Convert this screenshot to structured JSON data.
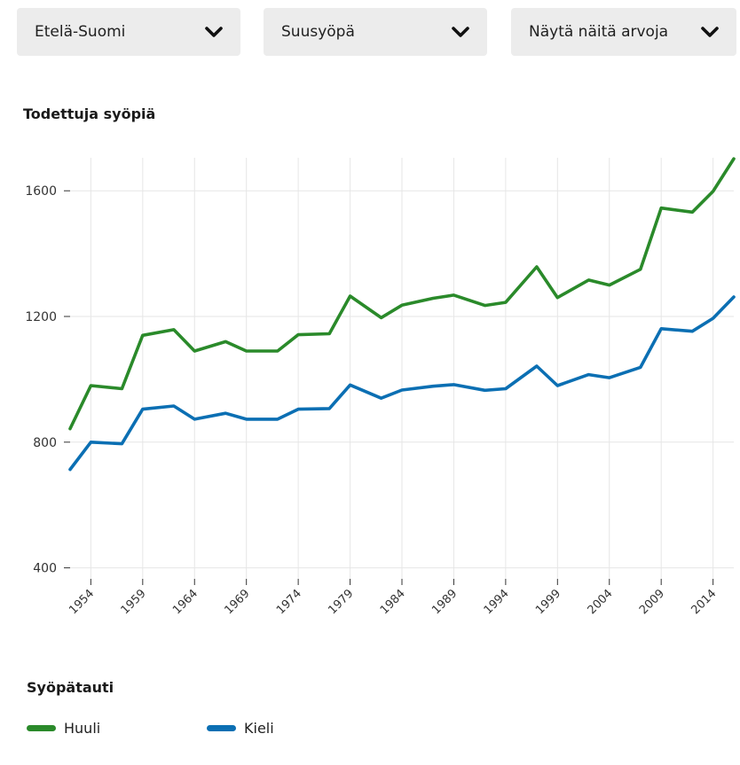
{
  "filters": {
    "region": {
      "value": "Etelä-Suomi"
    },
    "cancer": {
      "value": "Suusyöpä"
    },
    "values": {
      "value": "Näytä näitä arvoja"
    }
  },
  "chart_title": "Todettuja syöpiä",
  "legend": {
    "title": "Syöpätauti"
  },
  "colors": {
    "Huuli": "#2a8a2a",
    "Kieli": "#0b6fb3",
    "grid": "#e6e6e6",
    "axis": "#333333"
  },
  "chart_data": {
    "type": "line",
    "title": "Todettuja syöpiä",
    "x": [
      1952,
      1954,
      1957,
      1959,
      1962,
      1964,
      1967,
      1969,
      1972,
      1974,
      1977,
      1979,
      1982,
      1984,
      1987,
      1989,
      1992,
      1994,
      1997,
      1999,
      2002,
      2004,
      2007,
      2009,
      2012,
      2014,
      2016
    ],
    "xticks": [
      1954,
      1959,
      1964,
      1969,
      1974,
      1979,
      1984,
      1989,
      1994,
      1999,
      2004,
      2009,
      2014
    ],
    "yticks": [
      400,
      800,
      1200,
      1600
    ],
    "xlim": [
      1952,
      2016
    ],
    "ylim": [
      365,
      1705
    ],
    "grid": true,
    "legend_position": "bottom",
    "series": [
      {
        "name": "Huuli",
        "values": [
          843,
          980,
          970,
          1140,
          1158,
          1090,
          1120,
          1090,
          1090,
          1142,
          1145,
          1265,
          1196,
          1236,
          1258,
          1268,
          1235,
          1245,
          1358,
          1260,
          1316,
          1300,
          1350,
          1545,
          1532,
          1598,
          1702
        ]
      },
      {
        "name": "Kieli",
        "values": [
          713,
          800,
          795,
          905,
          915,
          873,
          892,
          873,
          873,
          905,
          907,
          982,
          940,
          966,
          978,
          983,
          965,
          970,
          1042,
          980,
          1015,
          1005,
          1038,
          1161,
          1153,
          1194,
          1262
        ]
      }
    ]
  }
}
